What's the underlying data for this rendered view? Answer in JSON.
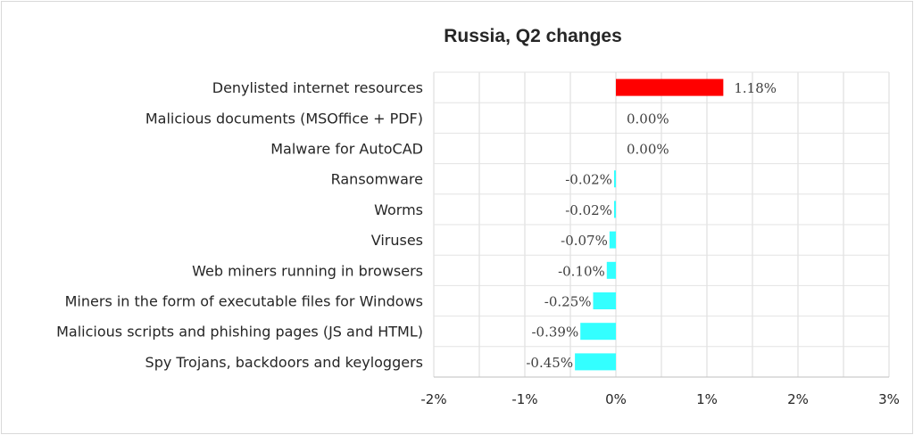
{
  "chart_data": {
    "type": "bar",
    "orientation": "horizontal",
    "title": "Russia, Q2 changes",
    "categories": [
      "Denylisted internet resources",
      "Malicious documents (MSOffice + PDF)",
      "Malware for AutoCAD",
      "Ransomware",
      "Worms",
      "Viruses",
      "Web miners running in browsers",
      "Miners in the form of executable files for Windows",
      "Malicious scripts and phishing pages (JS and HTML)",
      "Spy Trojans, backdoors and keyloggers"
    ],
    "values": [
      1.18,
      0.0,
      0.0,
      -0.02,
      -0.02,
      -0.07,
      -0.1,
      -0.25,
      -0.39,
      -0.45
    ],
    "value_labels": [
      "1.18%",
      "0.00%",
      "0.00%",
      "-0.02%",
      "-0.02%",
      "-0.07%",
      "-0.10%",
      "-0.25%",
      "-0.39%",
      "-0.45%"
    ],
    "xlim": [
      -2,
      3
    ],
    "xticks": [
      -2,
      -1,
      0,
      1,
      2,
      3
    ],
    "xtick_labels": [
      "-2%",
      "-1%",
      "0%",
      "1%",
      "2%",
      "3%"
    ],
    "positive_color": "#ff0000",
    "negative_color": "#33ffff",
    "grid": true,
    "legend": "none"
  }
}
